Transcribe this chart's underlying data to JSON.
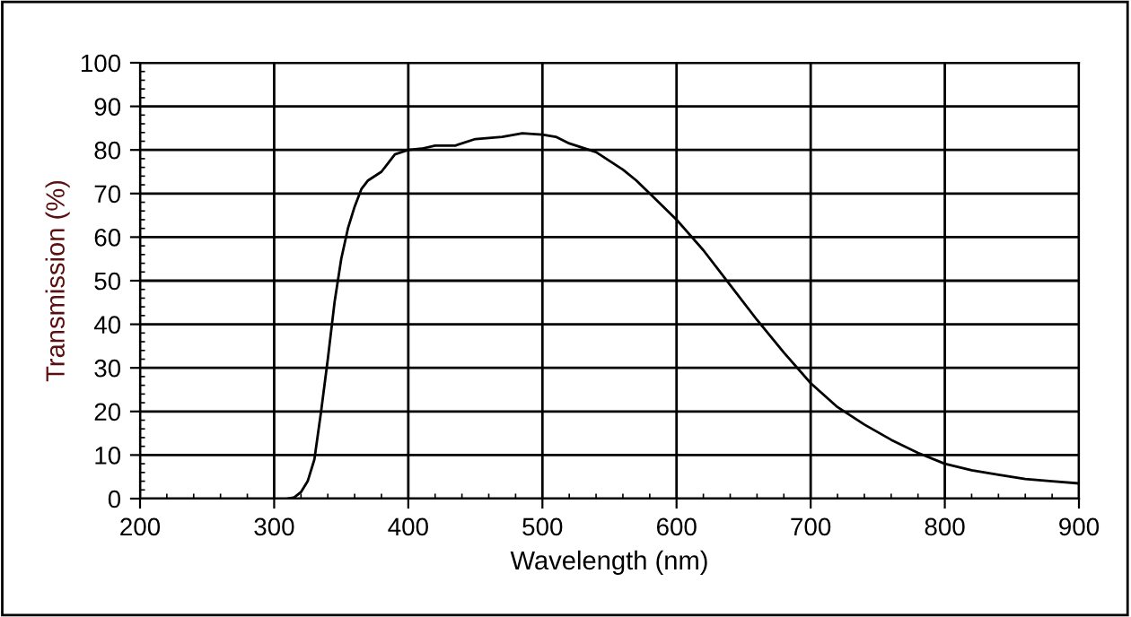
{
  "chart_data": {
    "type": "line",
    "xlabel": "Wavelength (nm)",
    "ylabel": "Transmission (%)",
    "x": [
      310,
      315,
      320,
      325,
      330,
      335,
      340,
      345,
      350,
      355,
      360,
      365,
      370,
      380,
      385,
      390,
      400,
      410,
      420,
      435,
      450,
      470,
      485,
      500,
      510,
      520,
      540,
      560,
      570,
      580,
      600,
      620,
      640,
      660,
      680,
      700,
      720,
      740,
      760,
      780,
      800,
      820,
      840,
      860,
      880,
      900
    ],
    "series": [
      {
        "color": "#000000",
        "values": [
          0,
          0.3,
          1.5,
          4,
          9,
          20,
          32,
          45,
          55,
          62,
          67,
          71,
          73,
          75,
          77,
          79,
          80,
          80.3,
          81,
          81,
          82.5,
          83,
          83.8,
          83.5,
          83,
          81.5,
          79.5,
          75.5,
          73,
          70,
          64,
          57,
          49,
          41,
          33.5,
          26.5,
          21,
          17,
          13.5,
          10.5,
          8,
          6.5,
          5.5,
          4.5,
          4,
          3.5
        ]
      }
    ],
    "xlim": [
      200,
      900
    ],
    "xticks": [
      200,
      300,
      400,
      500,
      600,
      700,
      800,
      900
    ],
    "ylim": [
      0,
      100
    ],
    "yticks": [
      0,
      10,
      20,
      30,
      40,
      50,
      60,
      70,
      80,
      90,
      100
    ],
    "grid": true,
    "legend": false,
    "marker": "none",
    "line_style": "solid"
  }
}
